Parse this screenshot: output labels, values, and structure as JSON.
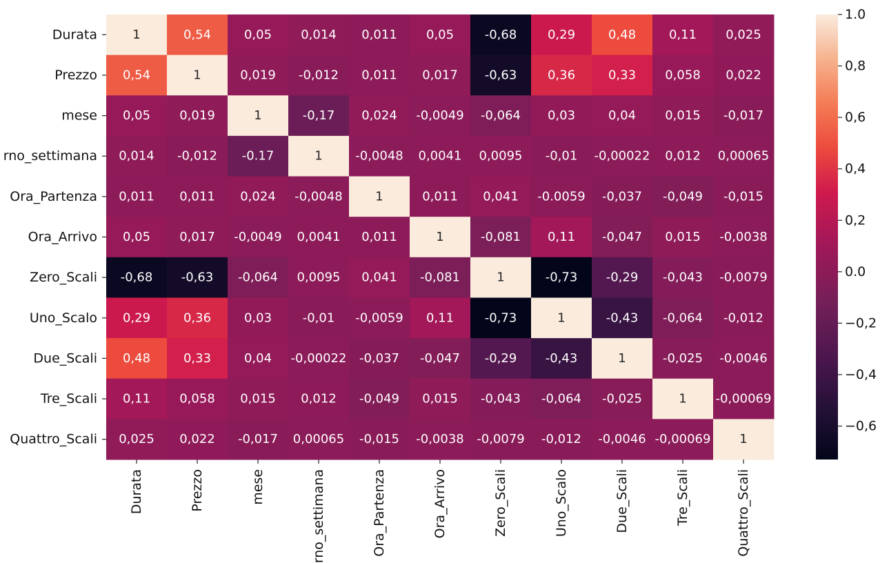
{
  "chart_data": {
    "type": "heatmap",
    "title": "",
    "xlabel": "",
    "ylabel": "",
    "rows": [
      "Durata",
      "Prezzo",
      "mese",
      "rno_settimana",
      "Ora_Partenza",
      "Ora_Arrivo",
      "Zero_Scali",
      "Uno_Scalo",
      "Due_Scali",
      "Tre_Scali",
      "Quattro_Scali"
    ],
    "columns": [
      "Durata",
      "Prezzo",
      "mese",
      "rno_settimana",
      "Ora_Partenza",
      "Ora_Arrivo",
      "Zero_Scali",
      "Uno_Scalo",
      "Due_Scali",
      "Tre_Scali",
      "Quattro_Scali"
    ],
    "values": [
      [
        1,
        0.54,
        0.05,
        0.014,
        0.011,
        0.05,
        -0.68,
        0.29,
        0.48,
        0.11,
        0.025
      ],
      [
        0.54,
        1,
        0.019,
        -0.012,
        0.011,
        0.017,
        -0.63,
        0.36,
        0.33,
        0.058,
        0.022
      ],
      [
        0.05,
        0.019,
        1,
        -0.17,
        0.024,
        -0.0049,
        -0.064,
        0.03,
        0.04,
        0.015,
        -0.017
      ],
      [
        0.014,
        -0.012,
        -0.17,
        1,
        -0.0048,
        0.0041,
        0.0095,
        -0.01,
        -0.00022,
        0.012,
        0.00065
      ],
      [
        0.011,
        0.011,
        0.024,
        -0.0048,
        1,
        0.011,
        0.041,
        -0.0059,
        -0.037,
        -0.049,
        -0.015
      ],
      [
        0.05,
        0.017,
        -0.0049,
        0.0041,
        0.011,
        1,
        -0.081,
        0.11,
        -0.047,
        0.015,
        -0.0038
      ],
      [
        -0.68,
        -0.63,
        -0.064,
        0.0095,
        0.041,
        -0.081,
        1,
        -0.73,
        -0.29,
        -0.043,
        -0.0079
      ],
      [
        0.29,
        0.36,
        0.03,
        -0.01,
        -0.0059,
        0.11,
        -0.73,
        1,
        -0.43,
        -0.064,
        -0.012
      ],
      [
        0.48,
        0.33,
        0.04,
        -0.00022,
        -0.037,
        -0.047,
        -0.29,
        -0.43,
        1,
        -0.025,
        -0.0046
      ],
      [
        0.11,
        0.058,
        0.015,
        0.012,
        -0.049,
        0.015,
        -0.043,
        -0.064,
        -0.025,
        1,
        -0.00069
      ],
      [
        0.025,
        0.022,
        -0.017,
        0.00065,
        -0.015,
        -0.0038,
        -0.0079,
        -0.012,
        -0.0046,
        -0.00069,
        1
      ]
    ],
    "cell_labels": [
      [
        "1",
        "0,54",
        "0,05",
        "0,014",
        "0,011",
        "0,05",
        "-0,68",
        "0,29",
        "0,48",
        "0,11",
        "0,025"
      ],
      [
        "0,54",
        "1",
        "0,019",
        "-0,012",
        "0,011",
        "0,017",
        "-0,63",
        "0,36",
        "0,33",
        "0,058",
        "0,022"
      ],
      [
        "0,05",
        "0,019",
        "1",
        "-0,17",
        "0,024",
        "-0,0049",
        "-0,064",
        "0,03",
        "0,04",
        "0,015",
        "-0,017"
      ],
      [
        "0,014",
        "-0,012",
        "-0.17",
        "1",
        "-0,0048",
        "0,0041",
        "0,0095",
        "-0,01",
        "-0,00022",
        "0,012",
        "0,00065"
      ],
      [
        "0,011",
        "0,011",
        "0,024",
        "-0,0048",
        "1",
        "0,011",
        "0,041",
        "-0.0059",
        "-0,037",
        "-0,049",
        "-0,015"
      ],
      [
        "0,05",
        "0,017",
        "-0,0049",
        "0,0041",
        "0,011",
        "1",
        "-0,081",
        "0,11",
        "-0,047",
        "0,015",
        "-0,0038"
      ],
      [
        "-0,68",
        "-0,63",
        "-0,064",
        "0,0095",
        "0,041",
        "-0,081",
        "1",
        "-0,73",
        "-0,29",
        "-0,043",
        "-0,0079"
      ],
      [
        "0,29",
        "0,36",
        "0,03",
        "-0,01",
        "-0,0059",
        "0,11",
        "-0,73",
        "1",
        "-0,43",
        "-0,064",
        "-0,012"
      ],
      [
        "0,48",
        "0,33",
        "0,04",
        "-0,00022",
        "-0,037",
        "-0,047",
        "-0,29",
        "-0,43",
        "1",
        "-0,025",
        "-0,0046"
      ],
      [
        "0,11",
        "0,058",
        "0,015",
        "0,012",
        "-0,049",
        "0,015",
        "-0,043",
        "-0,064",
        "-0,025",
        "1",
        "-0,00069"
      ],
      [
        "0,025",
        "0,022",
        "-0,017",
        "0,00065",
        "-0,015",
        "-0,0038",
        "-0,0079",
        "-0,012",
        "-0,0046",
        "-0,00069",
        "1"
      ]
    ],
    "colorbar": {
      "range": [
        -0.73,
        1.0
      ],
      "ticks": [
        1.0,
        0.8,
        0.6,
        0.4,
        0.2,
        0.0,
        -0.2,
        -0.4,
        -0.6
      ],
      "tick_labels": [
        "1.0",
        "0,8",
        "0,6",
        "0,4",
        "0,2",
        "0.0",
        "−0,2",
        "−0,4",
        "−0,6"
      ]
    },
    "colormap": "rocket",
    "grid": false
  }
}
